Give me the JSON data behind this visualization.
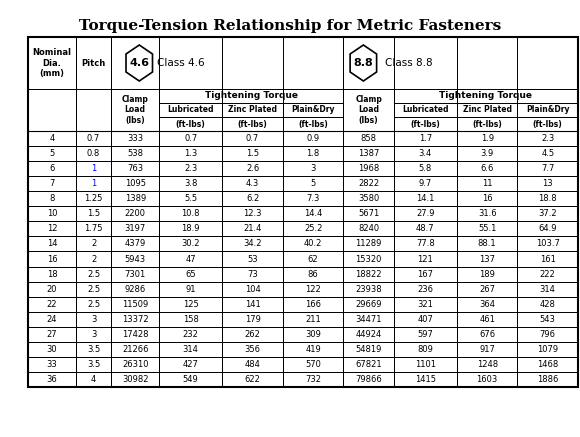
{
  "title": "Torque-Tension Relationship for Metric Fasteners",
  "class46_label": "4.6",
  "class46_text": "Class 4.6",
  "class88_label": "8.8",
  "class88_text": "Class 8.8",
  "col_headers_line1": [
    "Nominal\nDia.\n(mm)",
    "Pitch",
    "Clamp\nLoad\n(lbs)",
    "Lubricated\n(ft-lbs)",
    "Zinc Plated\n(ft-lbs)",
    "Plain&Dry\n(ft-lbs)",
    "Clamp\nLoad\n(lbs)",
    "Lubricated\n(ft-lbs)",
    "Zinc Plated\n(ft-lbs)",
    "Plain&Dry\n(ft-lbs)"
  ],
  "tightening_torque_46": "Tightening Torque",
  "tightening_torque_88": "Tightening Torque",
  "rows": [
    [
      4,
      0.7,
      333,
      0.7,
      0.7,
      0.9,
      858,
      1.7,
      1.9,
      2.3
    ],
    [
      5,
      0.8,
      538,
      1.3,
      1.5,
      1.8,
      1387,
      3.4,
      3.9,
      4.5
    ],
    [
      6,
      1,
      763,
      2.3,
      2.6,
      3.0,
      1968,
      5.8,
      6.6,
      7.7
    ],
    [
      7,
      1,
      1095,
      3.8,
      4.3,
      5.0,
      2822,
      9.7,
      11.0,
      13.0
    ],
    [
      8,
      1.25,
      1389,
      5.5,
      6.2,
      7.3,
      3580,
      14.1,
      16.0,
      18.8
    ],
    [
      10,
      1.5,
      2200,
      10.8,
      12.3,
      14.4,
      5671,
      27.9,
      31.6,
      37.2
    ],
    [
      12,
      1.75,
      3197,
      18.9,
      21.4,
      25.2,
      8240,
      48.7,
      55.1,
      64.9
    ],
    [
      14,
      2,
      4379,
      30.2,
      34.2,
      40.2,
      11289,
      77.8,
      88.1,
      103.7
    ],
    [
      16,
      2,
      5943,
      47,
      53,
      62,
      15320,
      121,
      137,
      161
    ],
    [
      18,
      2.5,
      7301,
      65,
      73,
      86,
      18822,
      167,
      189,
      222
    ],
    [
      20,
      2.5,
      9286,
      91,
      104,
      122,
      23938,
      236,
      267,
      314
    ],
    [
      22,
      2.5,
      11509,
      125,
      141,
      166,
      29669,
      321,
      364,
      428
    ],
    [
      24,
      3,
      13372,
      158,
      179,
      211,
      34471,
      407,
      461,
      543
    ],
    [
      27,
      3,
      17428,
      232,
      262,
      309,
      44924,
      597,
      676,
      796
    ],
    [
      30,
      3.5,
      21266,
      314,
      356,
      419,
      54819,
      809,
      917,
      1079
    ],
    [
      33,
      3.5,
      26310,
      427,
      484,
      570,
      67821,
      1101,
      1248,
      1468
    ],
    [
      36,
      4,
      30982,
      549,
      622,
      732,
      79866,
      1415,
      1603,
      1886
    ]
  ],
  "bg_color": "#ffffff",
  "header_bg": "#e8e8e8",
  "border_color": "#000000",
  "text_color": "#000000",
  "blue_text": "#0000ff"
}
